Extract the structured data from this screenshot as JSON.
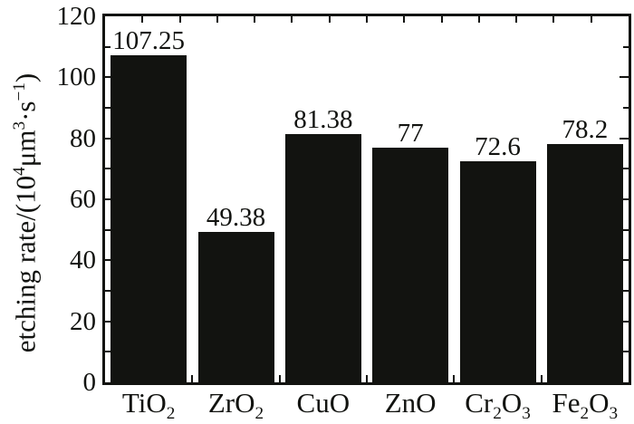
{
  "figure": {
    "background_color": "#ffffff",
    "ink_color": "#121310"
  },
  "chart_data": {
    "type": "bar",
    "title": "",
    "categories": [
      "TiO₂",
      "ZrO₂",
      "CuO",
      "ZnO",
      "Cr₂O₃",
      "Fe₂O₃"
    ],
    "category_segments": [
      [
        {
          "t": "TiO"
        },
        {
          "t": "2",
          "sub": true
        }
      ],
      [
        {
          "t": "ZrO"
        },
        {
          "t": "2",
          "sub": true
        }
      ],
      [
        {
          "t": "CuO"
        }
      ],
      [
        {
          "t": "ZnO"
        }
      ],
      [
        {
          "t": "Cr"
        },
        {
          "t": "2",
          "sub": true
        },
        {
          "t": "O"
        },
        {
          "t": "3",
          "sub": true
        }
      ],
      [
        {
          "t": "Fe"
        },
        {
          "t": "2",
          "sub": true
        },
        {
          "t": "O"
        },
        {
          "t": "3",
          "sub": true
        }
      ]
    ],
    "values": [
      107.25,
      49.38,
      81.38,
      77,
      72.6,
      78.2
    ],
    "value_labels": [
      "107.25",
      "49.38",
      "81.38",
      "77",
      "72.6",
      "78.2"
    ],
    "bar_color": "#121310",
    "xlabel": "",
    "ylabel": "etching rate/(10⁴μm³·s⁻¹)",
    "ylabel_segments": [
      {
        "t": "etching rate/(10"
      },
      {
        "t": "4",
        "sup": true
      },
      {
        "t": "μm"
      },
      {
        "t": "3",
        "sup": true
      },
      {
        "t": "·s"
      },
      {
        "t": "−1",
        "sup": true
      },
      {
        "t": ")"
      }
    ],
    "ylim": [
      0,
      120
    ],
    "yticks_major": [
      0,
      20,
      40,
      60,
      80,
      100,
      120
    ],
    "ytick_labels": [
      "0",
      "20",
      "40",
      "60",
      "80",
      "100",
      "120"
    ],
    "yticks_minor": [
      10,
      30,
      50,
      70,
      90,
      110
    ],
    "top_minor_tick_count": 13,
    "grid": false,
    "legend": null,
    "frame": "box",
    "tick_direction": "in"
  }
}
